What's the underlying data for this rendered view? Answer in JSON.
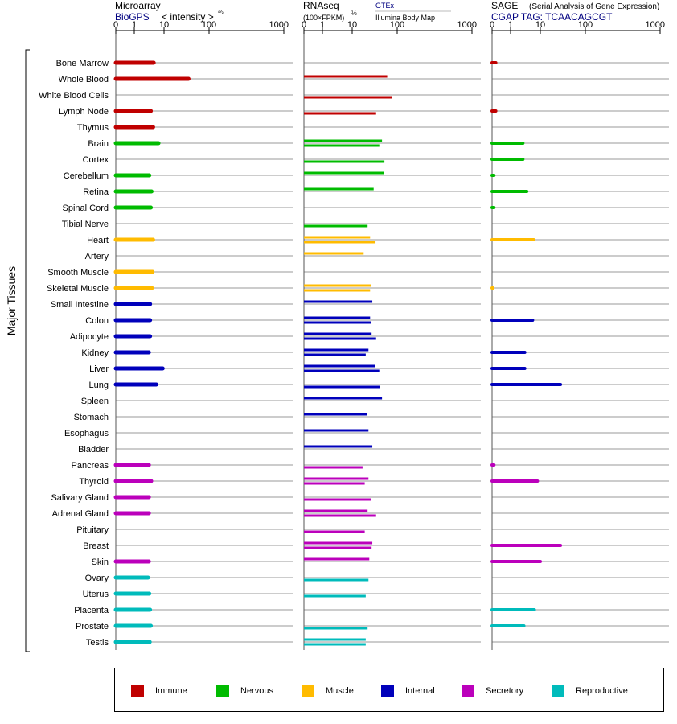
{
  "panels": [
    {
      "title": "Microarray",
      "subtitle": "BioGPS",
      "annotation": "< intensity >",
      "annotation_exp": "⅔"
    },
    {
      "title": "RNAseq",
      "subtitle_small": "(100×FPKM)",
      "subtitle_exp": "½",
      "gtex": "GTEx",
      "body_map": "Illumina Body Map"
    },
    {
      "title": "SAGE",
      "title_note": "(Serial Analysis of Gene Expression)",
      "tag": "CGAP TAG: TCAACAGCGT"
    }
  ],
  "y_axis_title": "Major Tissues",
  "chart_data": {
    "type": "bar",
    "categories": [
      "Bone Marrow",
      "Whole Blood",
      "White Blood Cells",
      "Lymph Node",
      "Thymus",
      "Brain",
      "Cortex",
      "Cerebellum",
      "Retina",
      "Spinal Cord",
      "Tibial Nerve",
      "Heart",
      "Artery",
      "Smooth Muscle",
      "Skeletal Muscle",
      "Small Intestine",
      "Colon",
      "Adipocyte",
      "Kidney",
      "Liver",
      "Lung",
      "Spleen",
      "Stomach",
      "Esophagus",
      "Bladder",
      "Pancreas",
      "Thyroid",
      "Salivary Gland",
      "Adrenal Gland",
      "Pituitary",
      "Breast",
      "Skin",
      "Ovary",
      "Uterus",
      "Placenta",
      "Prostate",
      "Testis"
    ],
    "groups": [
      "Immune",
      "Immune",
      "Immune",
      "Immune",
      "Immune",
      "Nervous",
      "Nervous",
      "Nervous",
      "Nervous",
      "Nervous",
      "Nervous",
      "Muscle",
      "Muscle",
      "Muscle",
      "Muscle",
      "Internal",
      "Internal",
      "Internal",
      "Internal",
      "Internal",
      "Internal",
      "Internal",
      "Internal",
      "Internal",
      "Internal",
      "Secretory",
      "Secretory",
      "Secretory",
      "Secretory",
      "Secretory",
      "Secretory",
      "Secretory",
      "Reproductive",
      "Reproductive",
      "Reproductive",
      "Reproductive",
      "Reproductive"
    ],
    "x_scale": "log (0,1,10,100,1000)",
    "xlim": [
      0,
      1000
    ],
    "x_ticks": [
      "0",
      "1",
      "10",
      "100",
      "1000"
    ],
    "series": [
      {
        "name": "Microarray",
        "values": [
          4.5,
          35,
          null,
          3.6,
          4.3,
          6.5,
          null,
          3.2,
          3.8,
          3.6,
          null,
          4.3,
          null,
          4.1,
          3.9,
          3.4,
          3.4,
          3.4,
          3.1,
          9,
          5.5,
          null,
          null,
          null,
          null,
          3.1,
          3.7,
          3.1,
          3.1,
          null,
          null,
          3.1,
          2.9,
          3.2,
          3.4,
          3.6,
          3.3
        ]
      },
      {
        "name": "GTEx",
        "values": [
          null,
          60,
          null,
          null,
          null,
          46,
          null,
          50,
          30,
          null,
          null,
          25,
          18,
          null,
          26,
          28,
          25,
          27,
          23,
          32,
          null,
          46,
          21,
          23,
          28,
          null,
          23,
          null,
          22,
          null,
          28,
          24,
          null,
          null,
          null,
          null,
          20
        ]
      },
      {
        "name": "Illumina Body Map",
        "values": [
          null,
          null,
          78,
          34,
          null,
          40,
          52,
          null,
          null,
          null,
          22,
          33,
          null,
          null,
          25,
          null,
          26,
          34,
          20,
          40,
          42,
          null,
          null,
          null,
          null,
          17,
          19,
          26,
          34,
          19,
          27,
          null,
          23,
          20,
          null,
          22,
          20
        ]
      },
      {
        "name": "SAGE",
        "values": [
          0.2,
          null,
          null,
          0.2,
          null,
          2.6,
          2.6,
          0.1,
          3.5,
          0.1,
          null,
          6,
          null,
          null,
          0.05,
          null,
          5.5,
          null,
          3,
          3,
          28,
          null,
          null,
          null,
          null,
          0.1,
          8,
          null,
          null,
          null,
          28,
          10,
          null,
          null,
          6.3,
          2.8,
          null
        ]
      }
    ],
    "legend": [
      {
        "name": "Immune",
        "color": "#c00000"
      },
      {
        "name": "Nervous",
        "color": "#00bb00"
      },
      {
        "name": "Muscle",
        "color": "#ffbb00"
      },
      {
        "name": "Internal",
        "color": "#0000bb"
      },
      {
        "name": "Secretory",
        "color": "#bb00bb"
      },
      {
        "name": "Reproductive",
        "color": "#00bbbb"
      }
    ]
  }
}
